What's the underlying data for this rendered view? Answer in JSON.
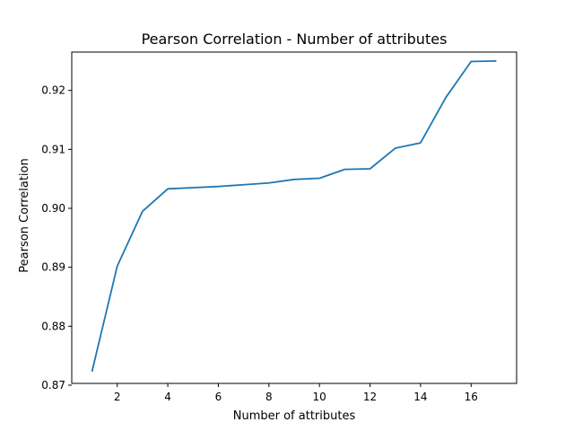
{
  "chart_data": {
    "type": "line",
    "title": "Pearson Correlation - Number of attributes",
    "xlabel": "Number of attributes",
    "ylabel": "Pearson Correlation",
    "xlim": [
      0.2,
      17.8
    ],
    "ylim": [
      0.8703,
      0.9265
    ],
    "xticks": [
      2,
      4,
      6,
      8,
      10,
      12,
      14,
      16
    ],
    "yticks": [
      0.87,
      0.88,
      0.89,
      0.9,
      0.91,
      0.92
    ],
    "grid": false,
    "series": [
      {
        "color": "#1f77b4",
        "x": [
          1,
          2,
          3,
          4,
          5,
          6,
          7,
          8,
          9,
          10,
          11,
          12,
          13,
          14,
          15,
          16,
          17
        ],
        "y": [
          0.8723,
          0.8902,
          0.8995,
          0.9033,
          0.9035,
          0.9037,
          0.904,
          0.9043,
          0.9049,
          0.9051,
          0.9066,
          0.9067,
          0.9102,
          0.9111,
          0.9188,
          0.9249,
          0.925
        ]
      }
    ]
  }
}
